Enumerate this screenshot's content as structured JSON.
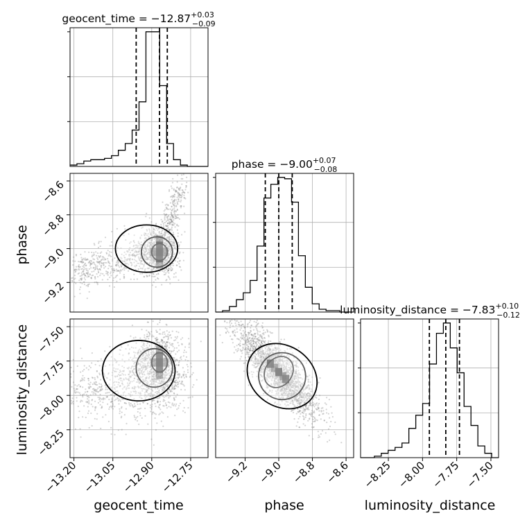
{
  "chart_data": {
    "type": "corner",
    "parameters": [
      "geocent_time",
      "phase",
      "luminosity_distance"
    ],
    "titles": [
      {
        "param": "geocent_time",
        "median": "−12.87",
        "plus": "+0.03",
        "minus": "−0.09"
      },
      {
        "param": "phase",
        "median": "−9.00",
        "plus": "+0.07",
        "minus": "−0.08"
      },
      {
        "param": "luminosity_distance",
        "median": "−7.83",
        "plus": "+0.10",
        "minus": "−0.12"
      }
    ],
    "ranges": {
      "geocent_time": [
        -13.215,
        -12.683
      ],
      "phase": [
        -9.375,
        -8.555
      ],
      "luminosity_distance": [
        -8.453,
        -7.444
      ]
    },
    "ticks": {
      "geocent_time": {
        "values": [
          -13.2,
          -13.05,
          -12.9,
          -12.75
        ],
        "labels": [
          "−13.20",
          "−13.05",
          "−12.90",
          "−12.75"
        ]
      },
      "phase": {
        "values": [
          -9.2,
          -9.0,
          -8.8,
          -8.6
        ],
        "labels": [
          "−9.2",
          "−9.0",
          "−8.8",
          "−8.6"
        ]
      },
      "luminosity_distance": {
        "values": [
          -8.25,
          -8.0,
          -7.75,
          -7.5
        ],
        "labels": [
          "−8.25",
          "−8.00",
          "−7.75",
          "−7.50"
        ]
      }
    },
    "quantiles": {
      "geocent_time": [
        -12.96,
        -12.87,
        -12.84
      ],
      "phase": [
        -9.08,
        -9.0,
        -8.92
      ],
      "luminosity_distance": [
        -7.95,
        -7.83,
        -7.73
      ]
    },
    "histograms": {
      "geocent_time": {
        "edges": [
          -13.215,
          -13.1884,
          -13.1618,
          -13.1352,
          -13.1086,
          -13.082,
          -13.0554,
          -13.0288,
          -13.0022,
          -12.9756,
          -12.949,
          -12.9224,
          -12.8958,
          -12.8692,
          -12.8426,
          -12.816,
          -12.7894,
          -12.7628,
          -12.7362,
          -12.7096,
          -12.683
        ],
        "counts": [
          1,
          2,
          4,
          5,
          5,
          6,
          8,
          12,
          17,
          27,
          48,
          100,
          100,
          60,
          17,
          5,
          1,
          0,
          0,
          0
        ]
      },
      "phase": {
        "edges": [
          -9.375,
          -9.334,
          -9.293,
          -9.252,
          -9.211,
          -9.17,
          -9.129,
          -9.088,
          -9.047,
          -9.006,
          -8.965,
          -8.924,
          -8.883,
          -8.842,
          -8.801,
          -8.76,
          -8.719,
          -8.678,
          -8.637,
          -8.596,
          -8.555
        ],
        "counts": [
          0,
          1,
          4,
          9,
          14,
          23,
          48,
          83,
          93,
          98,
          97,
          80,
          41,
          18,
          6,
          2,
          1,
          1,
          0,
          0
        ]
      },
      "luminosity_distance": {
        "edges": [
          -8.453,
          -8.4026,
          -8.3521,
          -8.3017,
          -8.2512,
          -8.2008,
          -8.1503,
          -8.0999,
          -8.0494,
          -7.999,
          -7.9485,
          -7.8981,
          -7.8476,
          -7.7972,
          -7.7467,
          -7.6963,
          -7.6458,
          -7.5954,
          -7.5449,
          -7.4945,
          -7.444
        ],
        "counts": [
          0,
          0,
          1,
          3,
          5,
          7,
          10,
          20,
          29,
          37,
          64,
          85,
          92,
          75,
          58,
          35,
          22,
          8,
          3,
          0
        ]
      }
    },
    "bivariate": [
      {
        "x": "geocent_time",
        "y": "phase",
        "center": [
          -12.87,
          -9.02
        ],
        "correlation": 0.05
      },
      {
        "x": "geocent_time",
        "y": "luminosity_distance",
        "center": [
          -12.87,
          -7.76
        ],
        "correlation": 0.0
      },
      {
        "x": "phase",
        "y": "luminosity_distance",
        "center": [
          -9.0,
          -7.83
        ],
        "correlation": -0.85
      }
    ],
    "grid": true,
    "colors": {
      "line": "#000000",
      "quantile": "#000000",
      "scatter": "#808080",
      "grid": "#b0b0b0"
    }
  }
}
